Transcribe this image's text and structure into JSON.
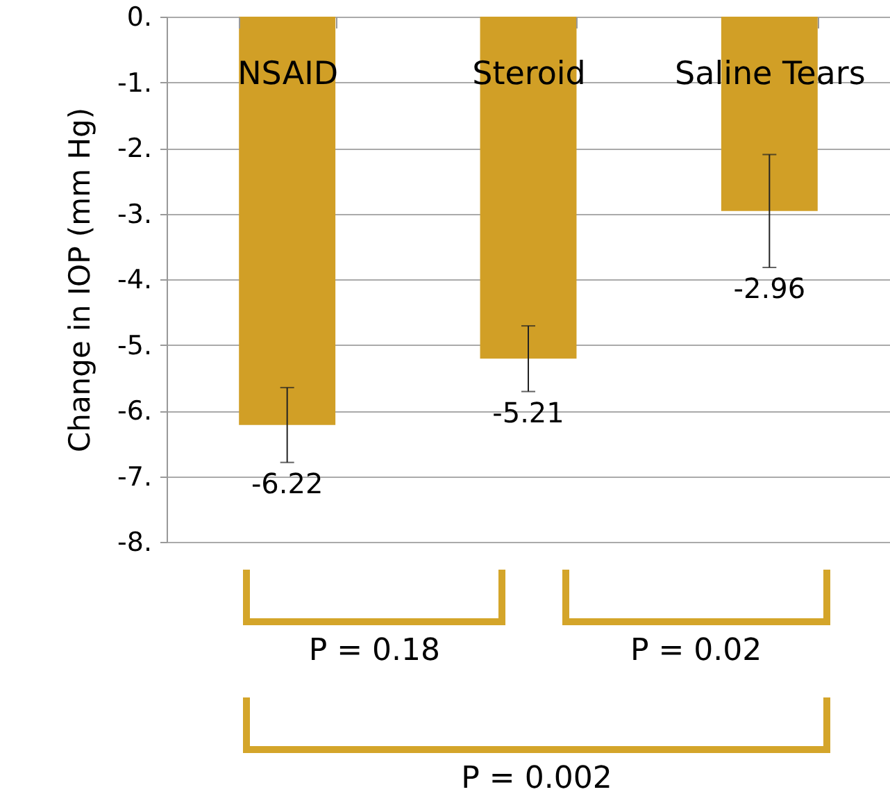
{
  "chart_data": {
    "type": "bar",
    "ylabel": "Change in IOP (mm Hg)",
    "categories": [
      "NSAID",
      "Steroid",
      "Saline Tears"
    ],
    "values": [
      -6.22,
      -5.21,
      -2.96
    ],
    "errors": [
      [
        -6.79,
        -5.65
      ],
      [
        -5.71,
        -4.71
      ],
      [
        -3.82,
        -2.1
      ]
    ],
    "color": "#d19f26",
    "ylim": [
      -8,
      0
    ],
    "yticks": [
      {
        "value": 0,
        "label": "0."
      },
      {
        "value": -1,
        "label": "-1."
      },
      {
        "value": -2,
        "label": "-2."
      },
      {
        "value": -3,
        "label": "-3."
      },
      {
        "value": -4,
        "label": "-4."
      },
      {
        "value": -5,
        "label": "-5."
      },
      {
        "value": -6,
        "label": "-6."
      },
      {
        "value": -7,
        "label": "-7."
      },
      {
        "value": -8,
        "label": "-8."
      }
    ],
    "grid": "y",
    "data_labels": true,
    "annotations": [
      "P = 0.18",
      "P = 0.02",
      "P = 0.002"
    ]
  }
}
